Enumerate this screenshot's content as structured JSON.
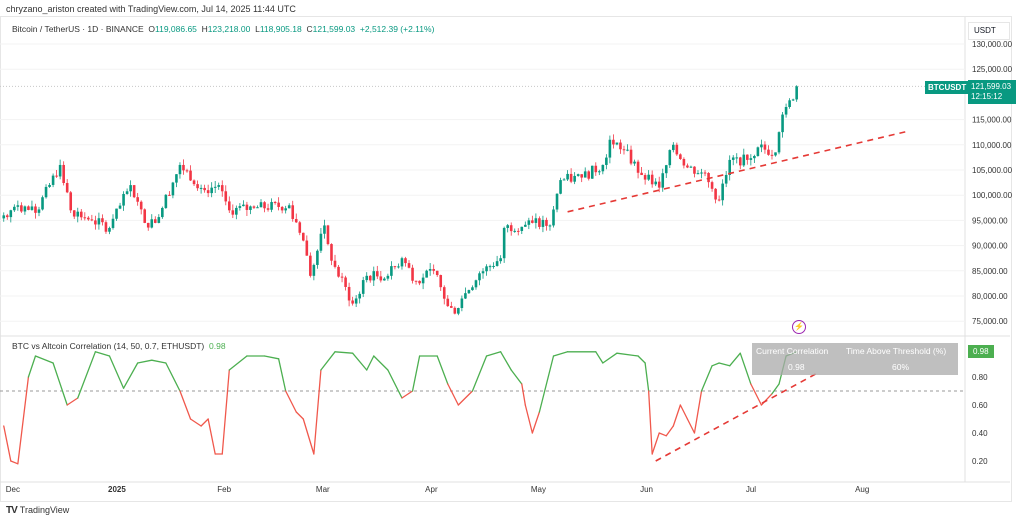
{
  "credit": "chryzano_ariston created with TradingView.com, Jul 14, 2025 11:44 UTC",
  "legend": {
    "symbol": "Bitcoin / TetherUS · 1D · BINANCE",
    "o_label": "O",
    "o": "119,086.65",
    "h_label": "H",
    "h": "123,218.00",
    "l_label": "L",
    "l": "118,905.18",
    "c_label": "C",
    "c": "121,599.03",
    "change": "+2,512.39 (+2.11%)"
  },
  "price_axis": {
    "unit": "USDT",
    "ticks": [
      "130,000.00",
      "125,000.00",
      "115,000.00",
      "110,000.00",
      "105,000.00",
      "100,000.00",
      "95,000.00",
      "90,000.00",
      "85,000.00",
      "80,000.00",
      "75,000.00"
    ]
  },
  "last_price": {
    "symbol": "BTCUSDT",
    "price": "121,599.03",
    "countdown": "12:15:12"
  },
  "indicator": {
    "name": "BTC vs Altcoin Correlation (14, 50, 0.7, ETHUSDT)",
    "value": "0.98",
    "ticks": [
      "0.80",
      "0.60",
      "0.40",
      "0.20"
    ],
    "table": {
      "h1": "Current Correlation",
      "h2": "Time Above Threshold (%)",
      "v1": "0.98",
      "v2": "60%"
    }
  },
  "time_axis": [
    "Dec",
    "2025",
    "Feb",
    "Mar",
    "Apr",
    "May",
    "Jun",
    "Jul",
    "Aug"
  ],
  "branding": "TradingView",
  "colors": {
    "up": "#089981",
    "down": "#f23645",
    "corr_up": "#4caf50",
    "corr_down": "#f0584c",
    "trend": "#e53935"
  },
  "chart_data": [
    {
      "type": "candlestick",
      "title": "Bitcoin / TetherUS · 1D · BINANCE",
      "ylim": [
        74000,
        131000
      ],
      "y_ticks": [
        75000,
        80000,
        85000,
        90000,
        95000,
        100000,
        105000,
        110000,
        115000,
        125000,
        130000
      ],
      "x_range": [
        "2024-12-01",
        "2025-08-20"
      ],
      "approx_closes": [
        [
          "2024-12-01",
          96000
        ],
        [
          "2024-12-05",
          98000
        ],
        [
          "2024-12-10",
          96500
        ],
        [
          "2024-12-17",
          106000
        ],
        [
          "2024-12-20",
          97000
        ],
        [
          "2024-12-26",
          95000
        ],
        [
          "2024-12-31",
          93500
        ],
        [
          "2025-01-06",
          102000
        ],
        [
          "2025-01-10",
          94500
        ],
        [
          "2025-01-13",
          94500
        ],
        [
          "2025-01-20",
          106000
        ],
        [
          "2025-01-27",
          101000
        ],
        [
          "2025-01-31",
          102000
        ],
        [
          "2025-02-03",
          97000
        ],
        [
          "2025-02-10",
          97500
        ],
        [
          "2025-02-20",
          98000
        ],
        [
          "2025-02-24",
          91000
        ],
        [
          "2025-02-26",
          84000
        ],
        [
          "2025-03-02",
          94000
        ],
        [
          "2025-03-04",
          87000
        ],
        [
          "2025-03-10",
          78500
        ],
        [
          "2025-03-14",
          84000
        ],
        [
          "2025-03-20",
          84000
        ],
        [
          "2025-03-24",
          87500
        ],
        [
          "2025-03-28",
          83000
        ],
        [
          "2025-04-02",
          85000
        ],
        [
          "2025-04-06",
          78000
        ],
        [
          "2025-04-08",
          76500
        ],
        [
          "2025-04-10",
          79500
        ],
        [
          "2025-04-15",
          84500
        ],
        [
          "2025-04-21",
          87500
        ],
        [
          "2025-04-22",
          93500
        ],
        [
          "2025-04-30",
          94500
        ],
        [
          "2025-05-05",
          94000
        ],
        [
          "2025-05-08",
          103000
        ],
        [
          "2025-05-14",
          103500
        ],
        [
          "2025-05-20",
          106000
        ],
        [
          "2025-05-22",
          111000
        ],
        [
          "2025-05-26",
          109000
        ],
        [
          "2025-05-31",
          104000
        ],
        [
          "2025-06-05",
          101500
        ],
        [
          "2025-06-09",
          110000
        ],
        [
          "2025-06-13",
          105500
        ],
        [
          "2025-06-17",
          104500
        ],
        [
          "2025-06-22",
          99000
        ],
        [
          "2025-06-25",
          107000
        ],
        [
          "2025-06-30",
          107000
        ],
        [
          "2025-07-03",
          109500
        ],
        [
          "2025-07-08",
          108500
        ],
        [
          "2025-07-10",
          116000
        ],
        [
          "2025-07-11",
          117500
        ],
        [
          "2025-07-13",
          119000
        ],
        [
          "2025-07-14",
          121599.03
        ]
      ],
      "trendline": [
        [
          "2025-05-10",
          96700
        ],
        [
          "2025-08-14",
          112600
        ]
      ]
    },
    {
      "type": "line",
      "title": "BTC vs Altcoin Correlation (14, 50, 0.7, ETHUSDT)",
      "ylim": [
        0.13,
        1.05
      ],
      "y_ticks": [
        0.2,
        0.4,
        0.6,
        0.8
      ],
      "threshold": 0.7,
      "points": [
        [
          "2024-12-01",
          0.45
        ],
        [
          "2024-12-03",
          0.2
        ],
        [
          "2024-12-05",
          0.18
        ],
        [
          "2024-12-08",
          0.8
        ],
        [
          "2024-12-10",
          0.95
        ],
        [
          "2024-12-15",
          0.9
        ],
        [
          "2024-12-19",
          0.6
        ],
        [
          "2024-12-22",
          0.65
        ],
        [
          "2024-12-27",
          0.98
        ],
        [
          "2024-12-31",
          0.95
        ],
        [
          "2025-01-04",
          0.72
        ],
        [
          "2025-01-08",
          0.9
        ],
        [
          "2025-01-12",
          0.92
        ],
        [
          "2025-01-16",
          0.9
        ],
        [
          "2025-01-20",
          0.7
        ],
        [
          "2025-01-23",
          0.5
        ],
        [
          "2025-01-26",
          0.45
        ],
        [
          "2025-01-28",
          0.5
        ],
        [
          "2025-01-30",
          0.25
        ],
        [
          "2025-02-01",
          0.25
        ],
        [
          "2025-02-03",
          0.85
        ],
        [
          "2025-02-08",
          0.95
        ],
        [
          "2025-02-13",
          0.95
        ],
        [
          "2025-02-17",
          0.93
        ],
        [
          "2025-02-19",
          0.7
        ],
        [
          "2025-02-22",
          0.55
        ],
        [
          "2025-02-24",
          0.5
        ],
        [
          "2025-02-27",
          0.25
        ],
        [
          "2025-03-01",
          0.85
        ],
        [
          "2025-03-05",
          0.98
        ],
        [
          "2025-03-10",
          0.97
        ],
        [
          "2025-03-14",
          0.85
        ],
        [
          "2025-03-16",
          0.95
        ],
        [
          "2025-03-20",
          0.85
        ],
        [
          "2025-03-24",
          0.65
        ],
        [
          "2025-03-27",
          0.7
        ],
        [
          "2025-03-29",
          0.95
        ],
        [
          "2025-04-03",
          0.95
        ],
        [
          "2025-04-06",
          0.75
        ],
        [
          "2025-04-09",
          0.6
        ],
        [
          "2025-04-13",
          0.7
        ],
        [
          "2025-04-17",
          0.95
        ],
        [
          "2025-04-21",
          0.98
        ],
        [
          "2025-04-24",
          0.85
        ],
        [
          "2025-04-27",
          0.75
        ],
        [
          "2025-04-28",
          0.6
        ],
        [
          "2025-04-30",
          0.4
        ],
        [
          "2025-05-02",
          0.55
        ],
        [
          "2025-05-06",
          0.95
        ],
        [
          "2025-05-10",
          0.98
        ],
        [
          "2025-05-18",
          0.98
        ],
        [
          "2025-05-20",
          0.9
        ],
        [
          "2025-05-24",
          0.97
        ],
        [
          "2025-05-30",
          0.95
        ],
        [
          "2025-06-01",
          0.9
        ],
        [
          "2025-06-02",
          0.7
        ],
        [
          "2025-06-03",
          0.25
        ],
        [
          "2025-06-05",
          0.4
        ],
        [
          "2025-06-07",
          0.38
        ],
        [
          "2025-06-09",
          0.45
        ],
        [
          "2025-06-11",
          0.6
        ],
        [
          "2025-06-13",
          0.5
        ],
        [
          "2025-06-15",
          0.4
        ],
        [
          "2025-06-17",
          0.7
        ],
        [
          "2025-06-20",
          0.88
        ],
        [
          "2025-06-22",
          0.9
        ],
        [
          "2025-06-25",
          0.88
        ],
        [
          "2025-06-28",
          0.97
        ],
        [
          "2025-07-01",
          0.75
        ],
        [
          "2025-07-04",
          0.6
        ],
        [
          "2025-07-07",
          0.68
        ],
        [
          "2025-07-09",
          0.75
        ],
        [
          "2025-07-11",
          0.95
        ],
        [
          "2025-07-14",
          0.98
        ]
      ],
      "trendline": [
        [
          "2025-06-04",
          0.2
        ],
        [
          "2025-07-20",
          0.83
        ]
      ]
    }
  ]
}
